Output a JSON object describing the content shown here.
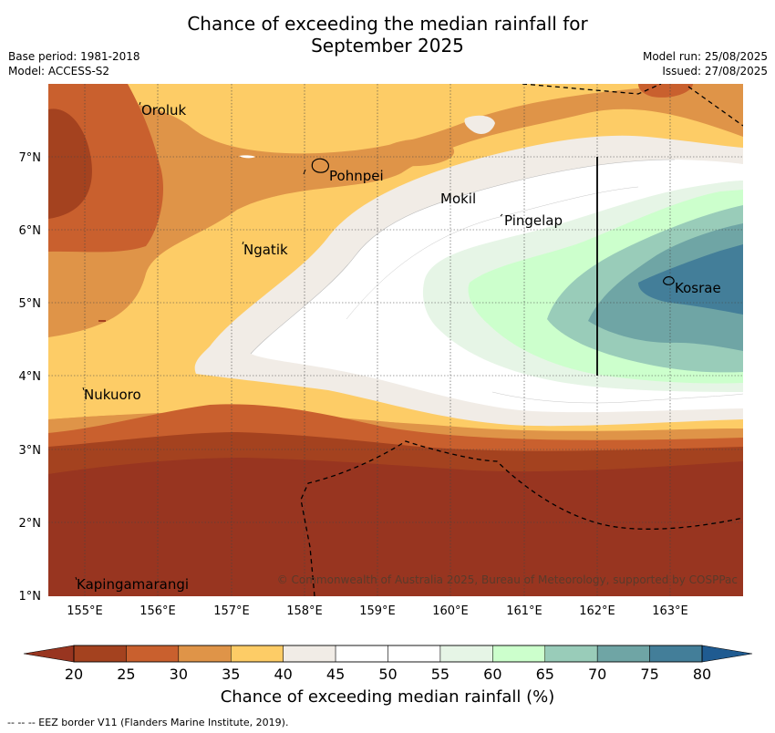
{
  "header": {
    "title_line1": "Chance of exceeding the median rainfall for",
    "title_line2": "September 2025",
    "base_period": "Base period: 1981-2018",
    "model": "Model: ACCESS-S2",
    "model_run": "Model run: 25/08/2025",
    "issued": "Issued: 27/08/2025"
  },
  "map": {
    "lat_labels": [
      "7°N",
      "6°N",
      "5°N",
      "4°N",
      "3°N",
      "2°N",
      "1°N"
    ],
    "lon_labels": [
      "155°E",
      "156°E",
      "157°E",
      "158°E",
      "159°E",
      "160°E",
      "161°E",
      "162°E",
      "163°E"
    ],
    "places": [
      "Oroluk",
      "Pohnpei",
      "Mokil",
      "Pingelap",
      "Ngatik",
      "Kosrae",
      "Nukuoro",
      "Kapingamarangi"
    ],
    "copyright": "© Commonwealth of Australia 2025, Bureau of Meteorology, supported by COSPPac"
  },
  "colorbar": {
    "ticks": [
      "20",
      "25",
      "30",
      "35",
      "40",
      "45",
      "50",
      "55",
      "60",
      "65",
      "70",
      "75",
      "80"
    ],
    "colors": [
      "#a4421f",
      "#c9602e",
      "#df9448",
      "#fdcc66",
      "#f1ece6",
      "#ffffff",
      "#ffffff",
      "#e6f5e6",
      "#ccffcc",
      "#99ccb9",
      "#6fa5a5",
      "#437e99"
    ],
    "under_color": "#983520",
    "over_color": "#1f5b91",
    "title": "Chance of exceeding median rainfall (%)"
  },
  "footer": "--  --  -- EEZ border V11 (Flanders Marine Institute, 2019)."
}
